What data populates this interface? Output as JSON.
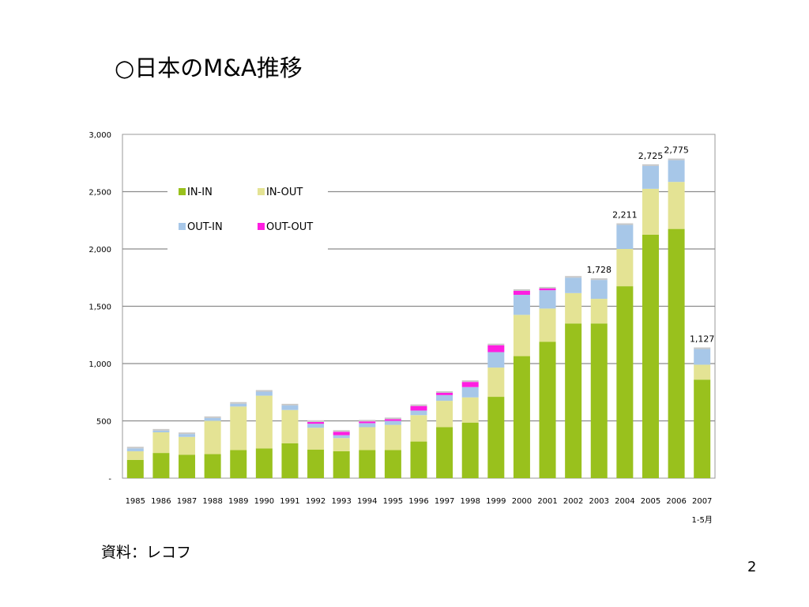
{
  "slide": {
    "title": "○日本のM&A推移",
    "source": "資料：レコフ",
    "page_number": "2"
  },
  "chart_data": {
    "type": "bar",
    "stacked": true,
    "title": "",
    "xlabel": "",
    "ylabel": "",
    "ylim": [
      0,
      3000
    ],
    "yticks": [
      {
        "value": 0,
        "label": "-"
      },
      {
        "value": 500,
        "label": "500"
      },
      {
        "value": 1000,
        "label": "1,000"
      },
      {
        "value": 1500,
        "label": "1,500"
      },
      {
        "value": 2000,
        "label": "2,000"
      },
      {
        "value": 2500,
        "label": "2,500"
      },
      {
        "value": 3000,
        "label": "3,000"
      }
    ],
    "grid": true,
    "categories": [
      "1985",
      "1986",
      "1987",
      "1988",
      "1989",
      "1990",
      "1991",
      "1992",
      "1993",
      "1994",
      "1995",
      "1996",
      "1997",
      "1998",
      "1999",
      "2000",
      "2001",
      "2002",
      "2003",
      "2004",
      "2005",
      "2006",
      "2007"
    ],
    "category_sublabels": {
      "2007": "1-5月"
    },
    "legend_position": "upper-left",
    "series": [
      {
        "name": "IN-IN",
        "color": "#99c11d",
        "values": [
          160,
          220,
          205,
          210,
          245,
          260,
          305,
          250,
          235,
          245,
          245,
          320,
          445,
          485,
          710,
          1065,
          1190,
          1350,
          1350,
          1675,
          2125,
          2175,
          860
        ]
      },
      {
        "name": "IN-OUT",
        "color": "#e4e394",
        "values": [
          75,
          180,
          155,
          290,
          380,
          460,
          290,
          190,
          115,
          200,
          220,
          230,
          230,
          220,
          255,
          360,
          290,
          265,
          215,
          325,
          400,
          410,
          130
        ]
      },
      {
        "name": "OUT-IN",
        "color": "#a7c7e8",
        "values": [
          25,
          15,
          25,
          25,
          25,
          35,
          40,
          35,
          25,
          35,
          35,
          40,
          50,
          90,
          135,
          175,
          160,
          135,
          165,
          210,
          200,
          190,
          137
        ]
      },
      {
        "name": "OUT-OUT",
        "color": "#ff1ee1",
        "values": [
          0,
          0,
          0,
          0,
          0,
          0,
          0,
          15,
          30,
          15,
          15,
          40,
          20,
          45,
          60,
          35,
          15,
          0,
          0,
          0,
          0,
          0,
          0
        ]
      }
    ],
    "totals": [
      {
        "category": "2003",
        "label": "1,728"
      },
      {
        "category": "2004",
        "label": "2,211"
      },
      {
        "category": "2005",
        "label": "2,725"
      },
      {
        "category": "2006",
        "label": "2,775"
      },
      {
        "category": "2007",
        "label": "1,127"
      }
    ]
  }
}
